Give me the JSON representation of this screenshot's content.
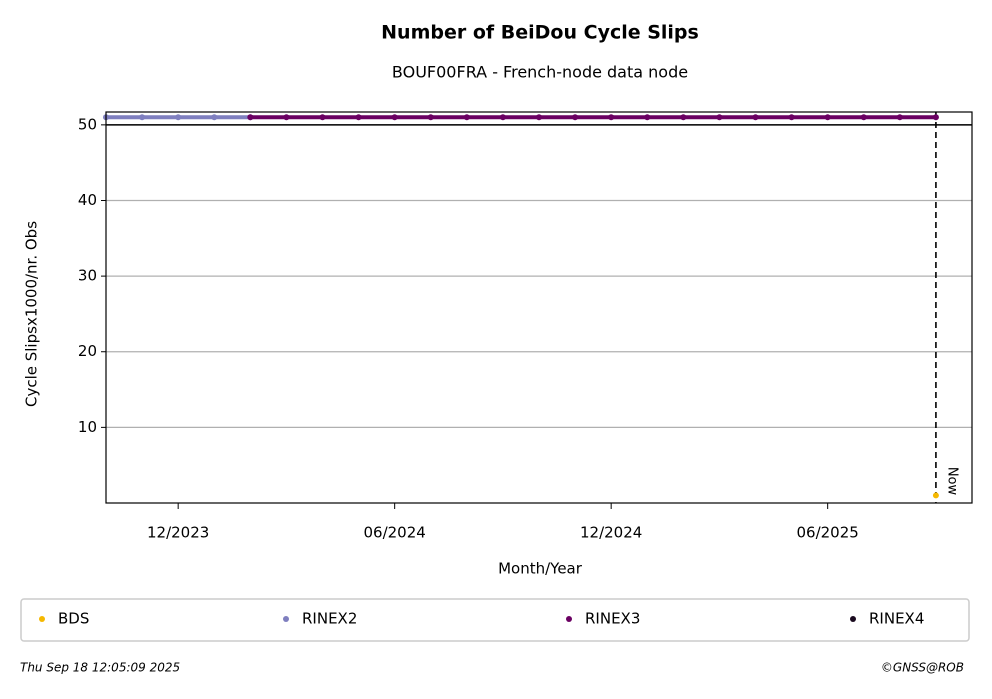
{
  "chart_data": {
    "type": "line",
    "title": "Number of BeiDou Cycle Slips",
    "subtitle": "BOUF00FRA - French-node data node",
    "x_label": "Month/Year",
    "y_label": "Cycle Slipsx1000/nr. Obs",
    "xlim": [
      "2023-10",
      "2025-10"
    ],
    "xticks": [
      {
        "value": "2023-12",
        "label": "12/2023"
      },
      {
        "value": "2024-06",
        "label": "06/2024"
      },
      {
        "value": "2024-12",
        "label": "12/2024"
      },
      {
        "value": "2025-06",
        "label": "06/2025"
      }
    ],
    "ylim": [
      0,
      51.7
    ],
    "yticks": [
      10,
      20,
      30,
      40,
      50
    ],
    "grid": true,
    "hline": 50,
    "now": "2025-09",
    "now_label": "Now",
    "series": [
      {
        "name": "BDS",
        "color": "#f5b800",
        "x": [
          "2025-09"
        ],
        "values": [
          1
        ]
      },
      {
        "name": "RINEX2",
        "color": "#7f7fbf",
        "x": [
          "2023-10",
          "2023-11",
          "2023-12",
          "2024-01",
          "2024-02"
        ],
        "values": [
          51,
          51,
          51,
          51,
          51
        ]
      },
      {
        "name": "RINEX3",
        "color": "#6a0062",
        "x": [
          "2024-02",
          "2024-03",
          "2024-04",
          "2024-05",
          "2024-06",
          "2024-07",
          "2024-08",
          "2024-09",
          "2024-10",
          "2024-11",
          "2024-12",
          "2025-01",
          "2025-02",
          "2025-03",
          "2025-04",
          "2025-05",
          "2025-06",
          "2025-07",
          "2025-08",
          "2025-09"
        ],
        "values": [
          51,
          51,
          51,
          51,
          51,
          51,
          51,
          51,
          51,
          51,
          51,
          51,
          51,
          51,
          51,
          51,
          51,
          51,
          51,
          51
        ]
      },
      {
        "name": "RINEX4",
        "color": "#1a0a1f",
        "x": [],
        "values": []
      }
    ],
    "footer_left": "Thu Sep 18 12:05:09 2025",
    "footer_right": "©GNSS@ROB"
  }
}
